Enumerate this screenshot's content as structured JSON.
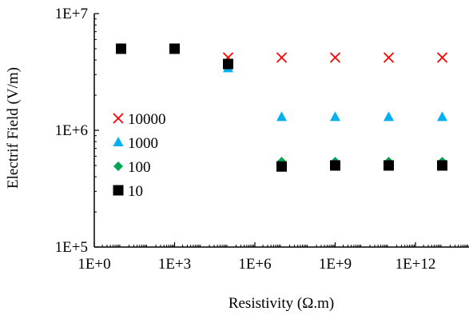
{
  "chart_data": {
    "type": "scatter",
    "title": "",
    "xlabel": "Resistivity (Ω.m)",
    "ylabel": "Electrif Field (V/m)",
    "xscale": "log",
    "yscale": "log",
    "xlim": [
      1,
      100000000000000.0
    ],
    "ylim": [
      100000,
      10000000
    ],
    "xticks": [
      {
        "value": 1,
        "label": "1E+0"
      },
      {
        "value": 1000,
        "label": "1E+3"
      },
      {
        "value": 1000000,
        "label": "1E+6"
      },
      {
        "value": 1000000000,
        "label": "1E+9"
      },
      {
        "value": 1000000000000,
        "label": "1E+12"
      }
    ],
    "yticks": [
      {
        "value": 100000,
        "label": "1E+5"
      },
      {
        "value": 1000000,
        "label": "1E+6"
      },
      {
        "value": 10000000,
        "label": "1E+7"
      }
    ],
    "grid": false,
    "legend_position": "left",
    "series": [
      {
        "name": "10000",
        "marker": "x",
        "color": "#ff0000",
        "points": [
          {
            "x": 10,
            "y": 5000000
          },
          {
            "x": 1000,
            "y": 5000000
          },
          {
            "x": 100000,
            "y": 4200000
          },
          {
            "x": 10000000,
            "y": 4200000
          },
          {
            "x": 1000000000,
            "y": 4200000
          },
          {
            "x": 100000000000,
            "y": 4200000
          },
          {
            "x": 10000000000000,
            "y": 4200000
          }
        ]
      },
      {
        "name": "1000",
        "marker": "triangle",
        "color": "#00b0f0",
        "points": [
          {
            "x": 10,
            "y": 5000000
          },
          {
            "x": 1000,
            "y": 5000000
          },
          {
            "x": 100000,
            "y": 3400000
          },
          {
            "x": 10000000,
            "y": 1300000
          },
          {
            "x": 1000000000,
            "y": 1300000
          },
          {
            "x": 100000000000,
            "y": 1300000
          },
          {
            "x": 10000000000000,
            "y": 1300000
          }
        ]
      },
      {
        "name": "100",
        "marker": "diamond",
        "color": "#00a550",
        "points": [
          {
            "x": 10,
            "y": 5000000
          },
          {
            "x": 1000,
            "y": 5000000
          },
          {
            "x": 100000,
            "y": 3700000
          },
          {
            "x": 10000000,
            "y": 540000
          },
          {
            "x": 1000000000,
            "y": 540000
          },
          {
            "x": 100000000000,
            "y": 540000
          },
          {
            "x": 10000000000000,
            "y": 540000
          }
        ]
      },
      {
        "name": "10",
        "marker": "square",
        "color": "#000000",
        "points": [
          {
            "x": 10,
            "y": 5000000
          },
          {
            "x": 1000,
            "y": 5000000
          },
          {
            "x": 100000,
            "y": 3700000
          },
          {
            "x": 10000000,
            "y": 490000
          },
          {
            "x": 1000000000,
            "y": 500000
          },
          {
            "x": 100000000000,
            "y": 500000
          },
          {
            "x": 10000000000000,
            "y": 500000
          }
        ]
      }
    ]
  }
}
